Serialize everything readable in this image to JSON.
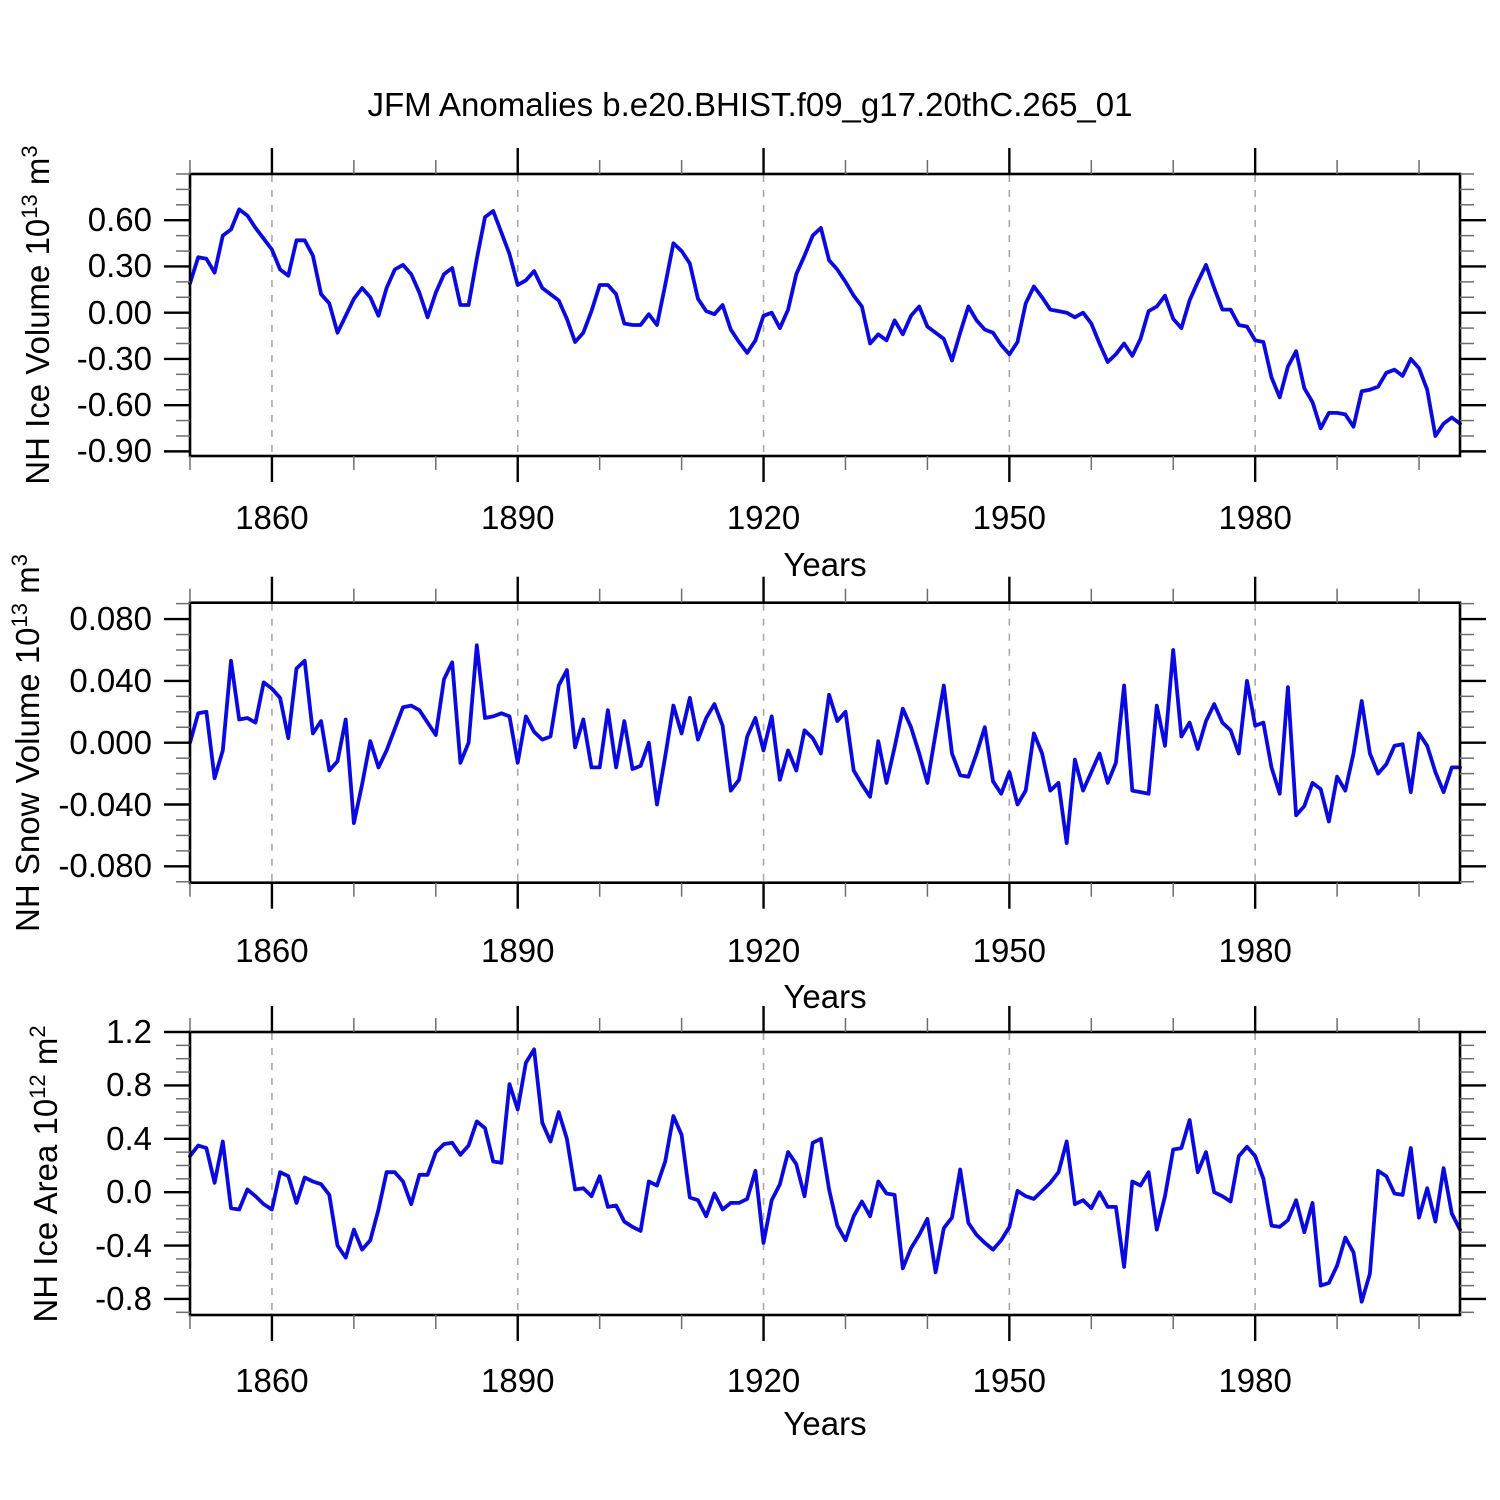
{
  "chart_data": {
    "type": "line",
    "title": "JFM Anomalies b.e20.BHIST.f09_g17.20thC.265_01",
    "line_color": "#0a0ae0",
    "grid_color": "#a8a8a8",
    "legend": "none",
    "grid": "vertical-dashed-at-major-x-ticks",
    "x": {
      "start_year": 1850,
      "end_year": 2005,
      "xlabel": "Years",
      "major_ticks": [
        1860,
        1890,
        1920,
        1950,
        1980
      ],
      "major_tick_labels": [
        "1860",
        "1890",
        "1920",
        "1950",
        "1980"
      ],
      "minor_tick_step": 10,
      "gridlines_at": [
        1860,
        1890,
        1920,
        1950,
        1980
      ]
    },
    "panels": [
      {
        "name": "nh-ice-volume",
        "ylabel_text": "NH Ice Volume 10^13 m^3",
        "ylabel_parts": [
          {
            "t": "NH Ice Volume 10"
          },
          {
            "t": "13",
            "sup": true
          },
          {
            "t": " m"
          },
          {
            "t": "3",
            "sup": true
          }
        ],
        "ylim": [
          -0.93,
          0.9
        ],
        "y_minor_step": 0.1,
        "yticks": {
          "labels": [
            "0.60",
            "0.30",
            "0.00",
            "-0.30",
            "-0.60",
            "-0.90"
          ],
          "values": [
            0.6,
            0.3,
            0.0,
            -0.3,
            -0.6,
            -0.9
          ]
        },
        "values": [
          0.19,
          0.36,
          0.35,
          0.26,
          0.5,
          0.54,
          0.67,
          0.63,
          0.55,
          0.48,
          0.41,
          0.28,
          0.24,
          0.47,
          0.47,
          0.37,
          0.12,
          0.06,
          -0.13,
          -0.02,
          0.09,
          0.16,
          0.1,
          -0.02,
          0.16,
          0.28,
          0.31,
          0.25,
          0.13,
          -0.03,
          0.13,
          0.25,
          0.29,
          0.05,
          0.05,
          0.35,
          0.62,
          0.66,
          0.52,
          0.38,
          0.18,
          0.21,
          0.27,
          0.16,
          0.12,
          0.08,
          -0.04,
          -0.19,
          -0.13,
          0.01,
          0.18,
          0.18,
          0.12,
          -0.07,
          -0.08,
          -0.08,
          -0.01,
          -0.08,
          0.18,
          0.45,
          0.4,
          0.32,
          0.09,
          0.01,
          -0.01,
          0.05,
          -0.11,
          -0.19,
          -0.26,
          -0.18,
          -0.02,
          0.0,
          -0.1,
          0.02,
          0.25,
          0.37,
          0.5,
          0.55,
          0.34,
          0.28,
          0.2,
          0.11,
          0.04,
          -0.2,
          -0.14,
          -0.18,
          -0.05,
          -0.14,
          -0.02,
          0.04,
          -0.09,
          -0.13,
          -0.17,
          -0.31,
          -0.13,
          0.04,
          -0.05,
          -0.11,
          -0.13,
          -0.21,
          -0.27,
          -0.19,
          0.06,
          0.17,
          0.1,
          0.02,
          0.01,
          0.0,
          -0.03,
          0.0,
          -0.07,
          -0.2,
          -0.32,
          -0.27,
          -0.2,
          -0.28,
          -0.17,
          0.01,
          0.04,
          0.11,
          -0.04,
          -0.1,
          0.08,
          0.2,
          0.31,
          0.16,
          0.02,
          0.02,
          -0.08,
          -0.09,
          -0.18,
          -0.19,
          -0.42,
          -0.55,
          -0.35,
          -0.25,
          -0.49,
          -0.58,
          -0.75,
          -0.65,
          -0.65,
          -0.66,
          -0.74,
          -0.51,
          -0.5,
          -0.48,
          -0.39,
          -0.37,
          -0.41,
          -0.3,
          -0.36,
          -0.5,
          -0.8,
          -0.72,
          -0.68,
          -0.72
        ]
      },
      {
        "name": "nh-snow-volume",
        "ylabel_text": "NH Snow Volume 10^13 m^3",
        "ylabel_parts": [
          {
            "t": "NH Snow Volume 10"
          },
          {
            "t": "13",
            "sup": true
          },
          {
            "t": " m"
          },
          {
            "t": "3",
            "sup": true
          }
        ],
        "ylim": [
          -0.0906,
          0.0906
        ],
        "y_minor_step": 0.01,
        "yticks": {
          "labels": [
            "0.080",
            "0.040",
            "0.000",
            "-0.040",
            "-0.080"
          ],
          "values": [
            0.08,
            0.04,
            0.0,
            -0.04,
            -0.08
          ]
        },
        "values": [
          0.0,
          0.019,
          0.02,
          -0.023,
          -0.005,
          0.053,
          0.015,
          0.016,
          0.013,
          0.039,
          0.035,
          0.029,
          0.003,
          0.048,
          0.053,
          0.006,
          0.014,
          -0.018,
          -0.012,
          0.015,
          -0.052,
          -0.027,
          0.001,
          -0.016,
          -0.005,
          0.009,
          0.023,
          0.024,
          0.021,
          0.013,
          0.005,
          0.041,
          0.052,
          -0.013,
          0.0,
          0.063,
          0.016,
          0.017,
          0.019,
          0.017,
          -0.013,
          0.017,
          0.007,
          0.002,
          0.004,
          0.037,
          0.047,
          -0.003,
          0.015,
          -0.016,
          -0.016,
          0.021,
          -0.016,
          0.014,
          -0.017,
          -0.015,
          0.0,
          -0.04,
          -0.009,
          0.024,
          0.006,
          0.029,
          0.002,
          0.016,
          0.025,
          0.011,
          -0.031,
          -0.024,
          0.004,
          0.016,
          -0.005,
          0.017,
          -0.024,
          -0.005,
          -0.018,
          0.008,
          0.003,
          -0.007,
          0.031,
          0.014,
          0.02,
          -0.018,
          -0.027,
          -0.035,
          0.001,
          -0.026,
          -0.003,
          0.022,
          0.01,
          -0.007,
          -0.026,
          0.006,
          0.037,
          -0.007,
          -0.021,
          -0.022,
          -0.007,
          0.01,
          -0.025,
          -0.033,
          -0.019,
          -0.04,
          -0.031,
          0.006,
          -0.007,
          -0.031,
          -0.026,
          -0.065,
          -0.011,
          -0.031,
          -0.019,
          -0.007,
          -0.026,
          -0.013,
          0.037,
          -0.031,
          -0.032,
          -0.033,
          0.024,
          -0.002,
          0.06,
          0.004,
          0.013,
          -0.004,
          0.014,
          0.025,
          0.013,
          0.008,
          -0.007,
          0.04,
          0.011,
          0.013,
          -0.016,
          -0.033,
          0.036,
          -0.047,
          -0.041,
          -0.026,
          -0.03,
          -0.051,
          -0.022,
          -0.031,
          -0.007,
          0.027,
          -0.007,
          -0.02,
          -0.014,
          -0.002,
          -0.001,
          -0.032,
          0.006,
          -0.002,
          -0.019,
          -0.032,
          -0.016,
          -0.016
        ]
      },
      {
        "name": "nh-ice-area",
        "ylabel_text": "NH Ice Area 10^12 m^2",
        "ylabel_parts": [
          {
            "t": "NH Ice Area 10"
          },
          {
            "t": "12",
            "sup": true
          },
          {
            "t": " m"
          },
          {
            "t": "2",
            "sup": true
          }
        ],
        "ylim": [
          -0.92,
          1.2
        ],
        "y_minor_step": 0.1,
        "yticks": {
          "labels": [
            "1.2",
            "0.8",
            "0.4",
            "0.0",
            "-0.4",
            "-0.8"
          ],
          "values": [
            1.2,
            0.8,
            0.4,
            0.0,
            -0.4,
            -0.8
          ]
        },
        "values": [
          0.27,
          0.35,
          0.33,
          0.07,
          0.38,
          -0.12,
          -0.13,
          0.02,
          -0.03,
          -0.09,
          -0.13,
          0.15,
          0.12,
          -0.08,
          0.11,
          0.08,
          0.06,
          -0.02,
          -0.4,
          -0.49,
          -0.28,
          -0.43,
          -0.36,
          -0.13,
          0.15,
          0.15,
          0.08,
          -0.09,
          0.13,
          0.13,
          0.3,
          0.36,
          0.37,
          0.28,
          0.35,
          0.53,
          0.48,
          0.23,
          0.22,
          0.81,
          0.62,
          0.97,
          1.07,
          0.52,
          0.38,
          0.6,
          0.4,
          0.02,
          0.03,
          -0.03,
          0.12,
          -0.11,
          -0.1,
          -0.22,
          -0.26,
          -0.29,
          0.08,
          0.05,
          0.23,
          0.57,
          0.43,
          -0.04,
          -0.06,
          -0.18,
          -0.01,
          -0.13,
          -0.08,
          -0.08,
          -0.05,
          0.16,
          -0.38,
          -0.06,
          0.06,
          0.3,
          0.21,
          -0.03,
          0.37,
          0.4,
          0.02,
          -0.25,
          -0.36,
          -0.18,
          -0.07,
          -0.18,
          0.08,
          -0.01,
          -0.02,
          -0.57,
          -0.42,
          -0.32,
          -0.2,
          -0.6,
          -0.27,
          -0.19,
          0.17,
          -0.23,
          -0.32,
          -0.38,
          -0.43,
          -0.36,
          -0.26,
          0.01,
          -0.03,
          -0.05,
          0.01,
          0.07,
          0.15,
          0.38,
          -0.09,
          -0.06,
          -0.12,
          0.0,
          -0.11,
          -0.11,
          -0.56,
          0.08,
          0.05,
          0.15,
          -0.28,
          -0.03,
          0.32,
          0.33,
          0.54,
          0.15,
          0.3,
          0.0,
          -0.03,
          -0.07,
          0.27,
          0.34,
          0.27,
          0.1,
          -0.25,
          -0.26,
          -0.21,
          -0.06,
          -0.3,
          -0.08,
          -0.7,
          -0.68,
          -0.55,
          -0.34,
          -0.45,
          -0.82,
          -0.61,
          0.16,
          0.12,
          -0.01,
          -0.02,
          0.33,
          -0.19,
          0.03,
          -0.22,
          0.18,
          -0.16,
          -0.28
        ]
      }
    ]
  }
}
